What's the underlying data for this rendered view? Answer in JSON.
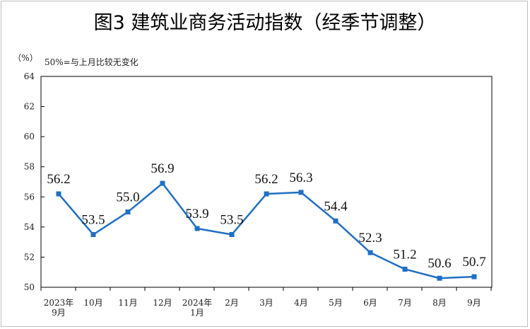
{
  "chart_data": {
    "type": "line",
    "title": "图3  建筑业商务活动指数（经季节调整）",
    "unit": "（%）",
    "note": "50%=与上月比较无变化",
    "categories": [
      [
        "2023年",
        "9月"
      ],
      [
        "10月"
      ],
      [
        "11月"
      ],
      [
        "12月"
      ],
      [
        "2024年",
        "1月"
      ],
      [
        "2月"
      ],
      [
        "3月"
      ],
      [
        "4月"
      ],
      [
        "5月"
      ],
      [
        "6月"
      ],
      [
        "7月"
      ],
      [
        "8月"
      ],
      [
        "9月"
      ]
    ],
    "series": [
      {
        "values": [
          56.2,
          53.5,
          55.0,
          56.9,
          53.9,
          53.5,
          56.2,
          56.3,
          54.4,
          52.3,
          51.2,
          50.6,
          50.7
        ],
        "labels": [
          "56.2",
          "53.5",
          "55.0",
          "56.9",
          "53.9",
          "53.5",
          "56.2",
          "56.3",
          "54.4",
          "52.3",
          "51.2",
          "50.6",
          "50.7"
        ],
        "color": "#1f6fc5"
      }
    ],
    "ylim": [
      50,
      64
    ],
    "yticks": [
      "50",
      "52",
      "54",
      "56",
      "58",
      "60",
      "62",
      "64"
    ],
    "grid": false,
    "legend": "none"
  }
}
